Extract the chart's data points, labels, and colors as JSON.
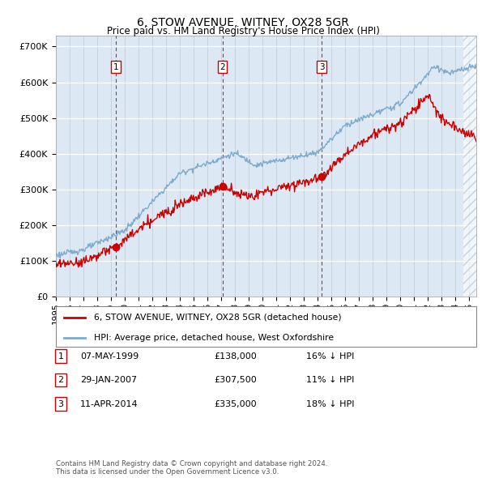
{
  "title": "6, STOW AVENUE, WITNEY, OX28 5GR",
  "subtitle": "Price paid vs. HM Land Registry's House Price Index (HPI)",
  "plot_background": "#dce9f5",
  "ylim": [
    0,
    730000
  ],
  "yticks": [
    0,
    100000,
    200000,
    300000,
    400000,
    500000,
    600000,
    700000
  ],
  "ytick_labels": [
    "£0",
    "£100K",
    "£200K",
    "£300K",
    "£400K",
    "£500K",
    "£600K",
    "£700K"
  ],
  "xlim_start": 1995,
  "xlim_end": 2025.5,
  "legend_line1": "6, STOW AVENUE, WITNEY, OX28 5GR (detached house)",
  "legend_line2": "HPI: Average price, detached house, West Oxfordshire",
  "legend_color1": "#cc0000",
  "legend_color2": "#7eaacc",
  "transactions": [
    {
      "num": 1,
      "date": "07-MAY-1999",
      "price": 138000,
      "pct": "16%",
      "x_year": 1999.36
    },
    {
      "num": 2,
      "date": "29-JAN-2007",
      "price": 307500,
      "pct": "11%",
      "x_year": 2007.08
    },
    {
      "num": 3,
      "date": "11-APR-2014",
      "price": 335000,
      "pct": "18%",
      "x_year": 2014.28
    }
  ],
  "footer": "Contains HM Land Registry data © Crown copyright and database right 2024.\nThis data is licensed under the Open Government Licence v3.0.",
  "hpi_color": "#7eaacc",
  "price_color": "#cc0000",
  "hatch_start": 2024.5
}
